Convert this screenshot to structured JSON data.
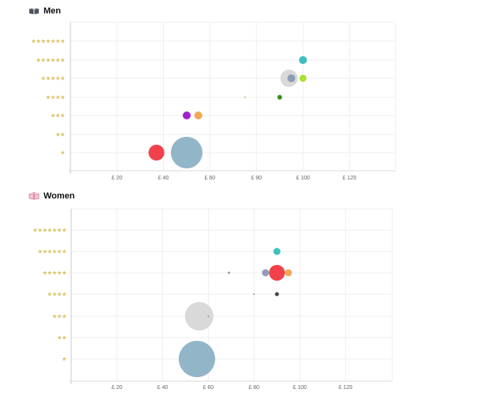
{
  "charts": [
    {
      "title": "Men",
      "icon": "men-book-icon",
      "colors": {
        "icon": "#4a5560"
      }
    },
    {
      "title": "Women",
      "icon": "women-book-icon",
      "colors": {
        "icon": "#d77a9a"
      }
    }
  ],
  "chart_data": [
    {
      "type": "scatter",
      "title": "Men",
      "xlabel": "",
      "ylabel": "",
      "x_ticks": [
        "£ 20",
        "£ 40",
        "£ 60",
        "£ 80",
        "£ 100",
        "£ 120"
      ],
      "x_tick_values": [
        20,
        40,
        60,
        80,
        100,
        120
      ],
      "xlim": [
        0,
        140
      ],
      "y_categories": [
        "★",
        "★★",
        "★★★",
        "★★★★",
        "★★★★★",
        "★★★★★★",
        "★★★★★★★"
      ],
      "y_values": [
        1,
        2,
        3,
        4,
        5,
        6,
        7
      ],
      "grid": true,
      "legend": "none",
      "points": [
        {
          "price": 100,
          "stars": 6,
          "size": 5,
          "color": "#3fbfbf"
        },
        {
          "price": 94,
          "stars": 5,
          "size": 11,
          "color": "#d9d9d9"
        },
        {
          "price": 95,
          "stars": 5,
          "size": 5,
          "color": "#8e9db5"
        },
        {
          "price": 100,
          "stars": 5,
          "size": 4.5,
          "color": "#a6e22e"
        },
        {
          "price": 90,
          "stars": 4,
          "size": 3,
          "color": "#3d8f1f"
        },
        {
          "price": 75,
          "stars": 4,
          "size": 1.5,
          "color": "#e8d9a8"
        },
        {
          "price": 50,
          "stars": 3,
          "size": 5,
          "color": "#a020d0"
        },
        {
          "price": 55,
          "stars": 3,
          "size": 5,
          "color": "#f2a955"
        },
        {
          "price": 37,
          "stars": 1,
          "size": 10,
          "color": "#f2414b"
        },
        {
          "price": 50,
          "stars": 1,
          "size": 20,
          "color": "#93b5c8"
        }
      ]
    },
    {
      "type": "scatter",
      "title": "Women",
      "xlabel": "",
      "ylabel": "",
      "x_ticks": [
        "£ 20",
        "£ 40",
        "£ 60",
        "£ 80",
        "£ 100",
        "£ 120"
      ],
      "x_tick_values": [
        20,
        40,
        60,
        80,
        100,
        120
      ],
      "xlim": [
        0,
        140
      ],
      "y_categories": [
        "★",
        "★★",
        "★★★",
        "★★★★",
        "★★★★★",
        "★★★★★★",
        "★★★★★★★"
      ],
      "y_values": [
        1,
        2,
        3,
        4,
        5,
        6,
        7
      ],
      "grid": true,
      "legend": "none",
      "points": [
        {
          "price": 90,
          "stars": 6,
          "size": 4.5,
          "color": "#3fbfbf"
        },
        {
          "price": 69,
          "stars": 5,
          "size": 1.5,
          "color": "#999999"
        },
        {
          "price": 85,
          "stars": 5,
          "size": 4.5,
          "color": "#8e9db5"
        },
        {
          "price": 90,
          "stars": 5,
          "size": 10,
          "color": "#f2414b"
        },
        {
          "price": 95,
          "stars": 5,
          "size": 4.5,
          "color": "#f2a955"
        },
        {
          "price": 80,
          "stars": 4,
          "size": 1,
          "color": "#999999"
        },
        {
          "price": 90,
          "stars": 4,
          "size": 2.5,
          "color": "#444444"
        },
        {
          "price": 56,
          "stars": 3,
          "size": 18,
          "color": "#d9d9d9"
        },
        {
          "price": 60,
          "stars": 3,
          "size": 1,
          "color": "#999999"
        },
        {
          "price": 55,
          "stars": 1,
          "size": 23,
          "color": "#93b5c8"
        }
      ]
    }
  ]
}
